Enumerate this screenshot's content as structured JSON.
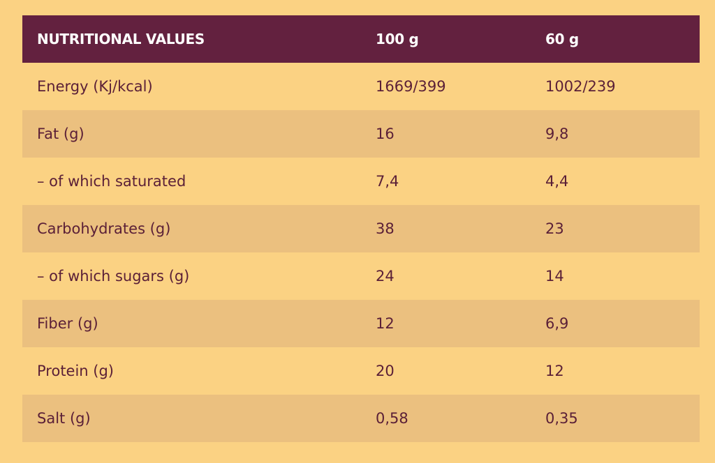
{
  "colors": {
    "page_background": "#fbd283",
    "header_background": "#63213f",
    "header_text": "#ffffff",
    "row_alt_background": "#ebc07f",
    "body_text": "#5a1f37"
  },
  "table": {
    "headers": [
      "NUTRITIONAL VALUES",
      "100 g",
      "60 g"
    ],
    "rows": [
      [
        "Energy (Kj/kcal)",
        "1669/399",
        "1002/239"
      ],
      [
        "Fat (g)",
        "16",
        "9,8"
      ],
      [
        "– of which saturated",
        "7,4",
        "4,4"
      ],
      [
        "Carbohydrates (g)",
        "38",
        "23"
      ],
      [
        "– of which sugars (g)",
        "24",
        "14"
      ],
      [
        "Fiber (g)",
        "12",
        "6,9"
      ],
      [
        "Protein (g)",
        "20",
        "12"
      ],
      [
        "Salt (g)",
        "0,58",
        "0,35"
      ]
    ]
  }
}
